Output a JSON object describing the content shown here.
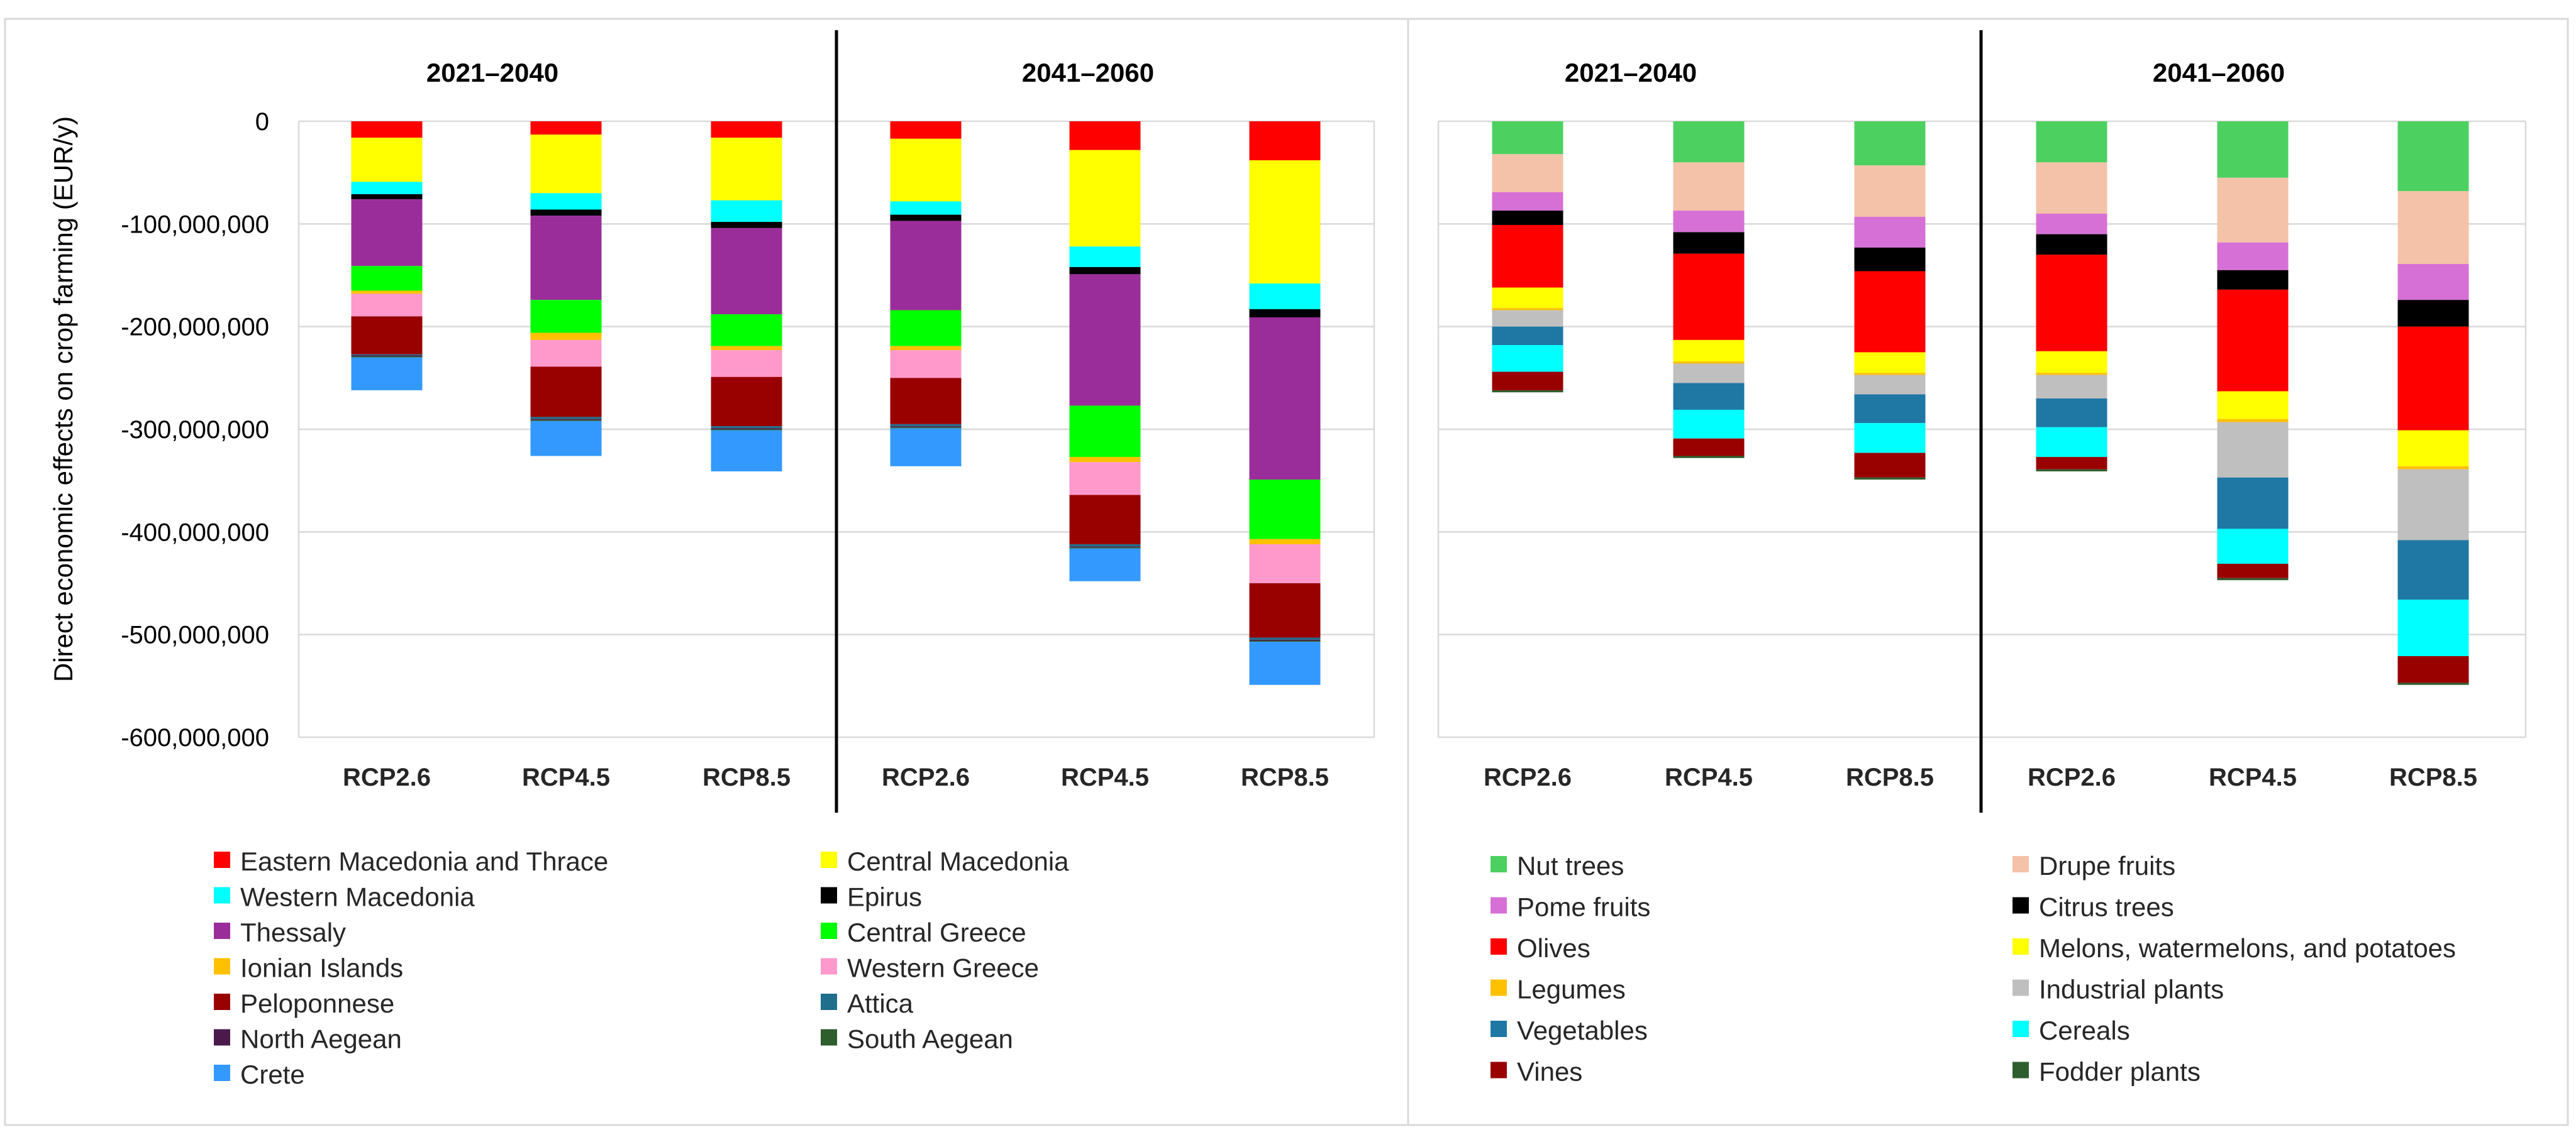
{
  "chart_data": [
    {
      "type": "stacked-bar",
      "ylabel": "Direct economic effects on crop farming (EUR/y)",
      "ylim": [
        -600000000,
        0
      ],
      "yticks": [
        0,
        -100000000,
        -200000000,
        -300000000,
        -400000000,
        -500000000,
        -600000000
      ],
      "ytick_labels": [
        "0",
        "-100,000,000",
        "-200,000,000",
        "-300,000,000",
        "-400,000,000",
        "-500,000,000",
        "-600,000,000"
      ],
      "groups": [
        {
          "title": "2021–2040",
          "categories": [
            "RCP2.6",
            "RCP4.5",
            "RCP8.5"
          ]
        },
        {
          "title": "2041–2060",
          "categories": [
            "RCP2.6",
            "RCP4.5",
            "RCP8.5"
          ]
        }
      ],
      "series": [
        {
          "name": "Eastern Macedonia and Thrace",
          "color": "#ff0000",
          "values": [
            -16000000,
            -13000000,
            -16000000,
            -17000000,
            -28000000,
            -38000000
          ]
        },
        {
          "name": "Central Macedonia",
          "color": "#ffff00",
          "values": [
            -43000000,
            -57000000,
            -61000000,
            -61000000,
            -94000000,
            -120000000
          ]
        },
        {
          "name": "Western Macedonia",
          "color": "#00ffff",
          "values": [
            -12000000,
            -16000000,
            -21000000,
            -13000000,
            -20000000,
            -25000000
          ]
        },
        {
          "name": "Epirus",
          "color": "#000000",
          "values": [
            -5000000,
            -6000000,
            -6000000,
            -6000000,
            -7000000,
            -8000000
          ]
        },
        {
          "name": "Thessaly",
          "color": "#9b2d9b",
          "values": [
            -65000000,
            -82000000,
            -84000000,
            -87000000,
            -128000000,
            -158000000
          ]
        },
        {
          "name": "Central Greece",
          "color": "#00ff00",
          "values": [
            -24000000,
            -32000000,
            -31000000,
            -35000000,
            -50000000,
            -58000000
          ]
        },
        {
          "name": "Ionian Islands",
          "color": "#ffc000",
          "values": [
            -3000000,
            -7000000,
            -4000000,
            -4000000,
            -5000000,
            -5000000
          ]
        },
        {
          "name": "Western Greece",
          "color": "#ff99cc",
          "values": [
            -22000000,
            -26000000,
            -26000000,
            -27000000,
            -32000000,
            -38000000
          ]
        },
        {
          "name": "Peloponnese",
          "color": "#990000",
          "values": [
            -37000000,
            -49000000,
            -48000000,
            -45000000,
            -48000000,
            -53000000
          ]
        },
        {
          "name": "Attica",
          "color": "#1f6e8c",
          "values": [
            -1000000,
            -2000000,
            -2000000,
            -2000000,
            -2000000,
            -2000000
          ]
        },
        {
          "name": "North Aegean",
          "color": "#4b1a4b",
          "values": [
            -1000000,
            -1000000,
            -1000000,
            -1000000,
            -1000000,
            -1000000
          ]
        },
        {
          "name": "South Aegean",
          "color": "#2e5e2e",
          "values": [
            -1000000,
            -1000000,
            -1000000,
            -1000000,
            -1000000,
            -1000000
          ]
        },
        {
          "name": "Crete",
          "color": "#3399ff",
          "values": [
            -32000000,
            -34000000,
            -40000000,
            -37000000,
            -32000000,
            -42000000
          ]
        }
      ]
    },
    {
      "type": "stacked-bar",
      "ylim": [
        -600000000,
        0
      ],
      "groups": [
        {
          "title": "2021–2040",
          "categories": [
            "RCP2.6",
            "RCP4.5",
            "RCP8.5"
          ]
        },
        {
          "title": "2041–2060",
          "categories": [
            "RCP2.6",
            "RCP4.5",
            "RCP8.5"
          ]
        }
      ],
      "series": [
        {
          "name": "Nut trees",
          "color": "#4cd160",
          "values": [
            -32000000,
            -40000000,
            -43000000,
            -40000000,
            -55000000,
            -68000000
          ]
        },
        {
          "name": "Drupe fruits",
          "color": "#f4c2a8",
          "values": [
            -37000000,
            -47000000,
            -50000000,
            -50000000,
            -63000000,
            -71000000
          ]
        },
        {
          "name": "Pome fruits",
          "color": "#d670d6",
          "values": [
            -18000000,
            -21000000,
            -30000000,
            -20000000,
            -27000000,
            -35000000
          ]
        },
        {
          "name": "Citrus trees",
          "color": "#000000",
          "values": [
            -14000000,
            -21000000,
            -23000000,
            -20000000,
            -19000000,
            -26000000
          ]
        },
        {
          "name": "Olives",
          "color": "#ff0000",
          "values": [
            -61000000,
            -84000000,
            -79000000,
            -94000000,
            -99000000,
            -101000000
          ]
        },
        {
          "name": "Melons, watermelons, and potatoes",
          "color": "#ffff00",
          "values": [
            -20000000,
            -21000000,
            -20000000,
            -21000000,
            -27000000,
            -35000000
          ]
        },
        {
          "name": "Legumes",
          "color": "#ffc000",
          "values": [
            -2000000,
            -2000000,
            -2000000,
            -2000000,
            -3000000,
            -3000000
          ]
        },
        {
          "name": "Industrial plants",
          "color": "#bfbfbf",
          "values": [
            -16000000,
            -19000000,
            -19000000,
            -23000000,
            -54000000,
            -69000000
          ]
        },
        {
          "name": "Vegetables",
          "color": "#1f77a4",
          "values": [
            -18000000,
            -26000000,
            -28000000,
            -28000000,
            -50000000,
            -58000000
          ]
        },
        {
          "name": "Cereals",
          "color": "#00ffff",
          "values": [
            -26000000,
            -28000000,
            -29000000,
            -29000000,
            -34000000,
            -55000000
          ]
        },
        {
          "name": "Vines",
          "color": "#990000",
          "values": [
            -18000000,
            -17000000,
            -24000000,
            -12000000,
            -14000000,
            -26000000
          ]
        },
        {
          "name": "Fodder plants",
          "color": "#2e5e2e",
          "values": [
            -2000000,
            -2000000,
            -2000000,
            -2000000,
            -2000000,
            -2000000
          ]
        }
      ]
    }
  ]
}
